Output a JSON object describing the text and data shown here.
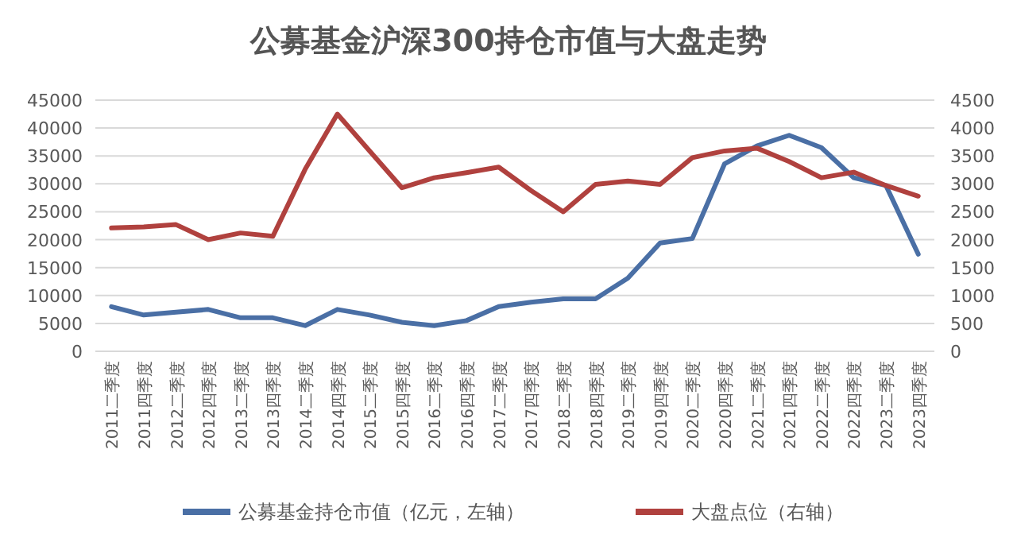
{
  "chart_data": {
    "type": "line",
    "title": "公募基金沪深300持仓市值与大盘走势",
    "categories": [
      "2011二季度",
      "2011四季度",
      "2012二季度",
      "2012四季度",
      "2013二季度",
      "2013四季度",
      "2014二季度",
      "2014四季度",
      "2015二季度",
      "2015四季度",
      "2016二季度",
      "2016四季度",
      "2017二季度",
      "2017四季度",
      "2018二季度",
      "2018四季度",
      "2019二季度",
      "2019四季度",
      "2020二季度",
      "2020四季度",
      "2021二季度",
      "2021四季度",
      "2022二季度",
      "2022四季度",
      "2023二季度",
      "2023四季度"
    ],
    "series": [
      {
        "name": "公募基金持仓市值（亿元，左轴）",
        "color": "#4a6fa5",
        "values": [
          8000,
          6500,
          7000,
          7500,
          6000,
          6000,
          4600,
          7500,
          6500,
          5200,
          4600,
          5500,
          8000,
          8800,
          9400,
          9400,
          13100,
          19400,
          20200,
          33600,
          36800,
          38700,
          36500,
          31100,
          29700,
          17400
        ]
      },
      {
        "name": "大盘点位（右轴）",
        "color": "#b0413e",
        "axis": "y2",
        "values": [
          2210,
          2230,
          2270,
          2000,
          2120,
          2060,
          3260,
          4250,
          3590,
          2930,
          3110,
          3200,
          3300,
          2880,
          2500,
          2990,
          3050,
          2990,
          3470,
          3590,
          3640,
          3400,
          3110,
          3210,
          2970,
          2780
        ]
      }
    ],
    "ylim": [
      0,
      45000
    ],
    "yticks": [
      0,
      5000,
      10000,
      15000,
      20000,
      25000,
      30000,
      35000,
      40000,
      45000
    ],
    "y2lim": [
      0,
      4500
    ],
    "y2ticks": [
      0,
      500,
      1000,
      1500,
      2000,
      2500,
      3000,
      3500,
      4000,
      4500
    ],
    "grid": "y",
    "legend": "bottom"
  }
}
